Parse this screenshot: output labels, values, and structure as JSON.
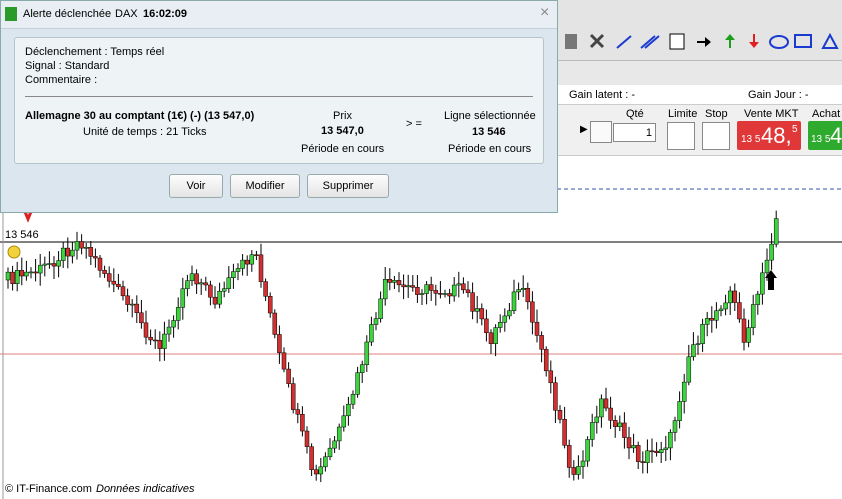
{
  "dialog": {
    "title": "Alerte déclenchée",
    "instrument": "DAX",
    "time": "16:02:09",
    "lines": [
      "Déclenchement : Temps réel",
      "Signal : Standard",
      "Commentaire :"
    ],
    "product": "Allemagne 30 au comptant (1€) (-) (13 547,0)",
    "timeframe": "Unité de temps : 21 Ticks",
    "price_label": "Prix",
    "price": "13 547,0",
    "price_period": "Période en cours",
    "operator": "> =",
    "line_label": "Ligne sélectionnée",
    "line_value": "13 546",
    "line_period": "Période en cours",
    "buttons": [
      "Voir",
      "Modifier",
      "Supprimer"
    ]
  },
  "account": {
    "gain_latent": "Gain latent : -",
    "gain_jour": "Gain Jour : -"
  },
  "order": {
    "qty_label": "Qté",
    "qty": "1",
    "limit": "Limite",
    "stop": "Stop",
    "sell_label": "Vente MKT",
    "sell_price": [
      "13 5",
      "48,",
      "5"
    ],
    "buy_label": "Achat",
    "buy_price": [
      "13 5",
      "4"
    ]
  },
  "chart": {
    "line_label": "13 546",
    "copyright": "© IT-Finance.com",
    "note": "Données indicatives"
  }
}
